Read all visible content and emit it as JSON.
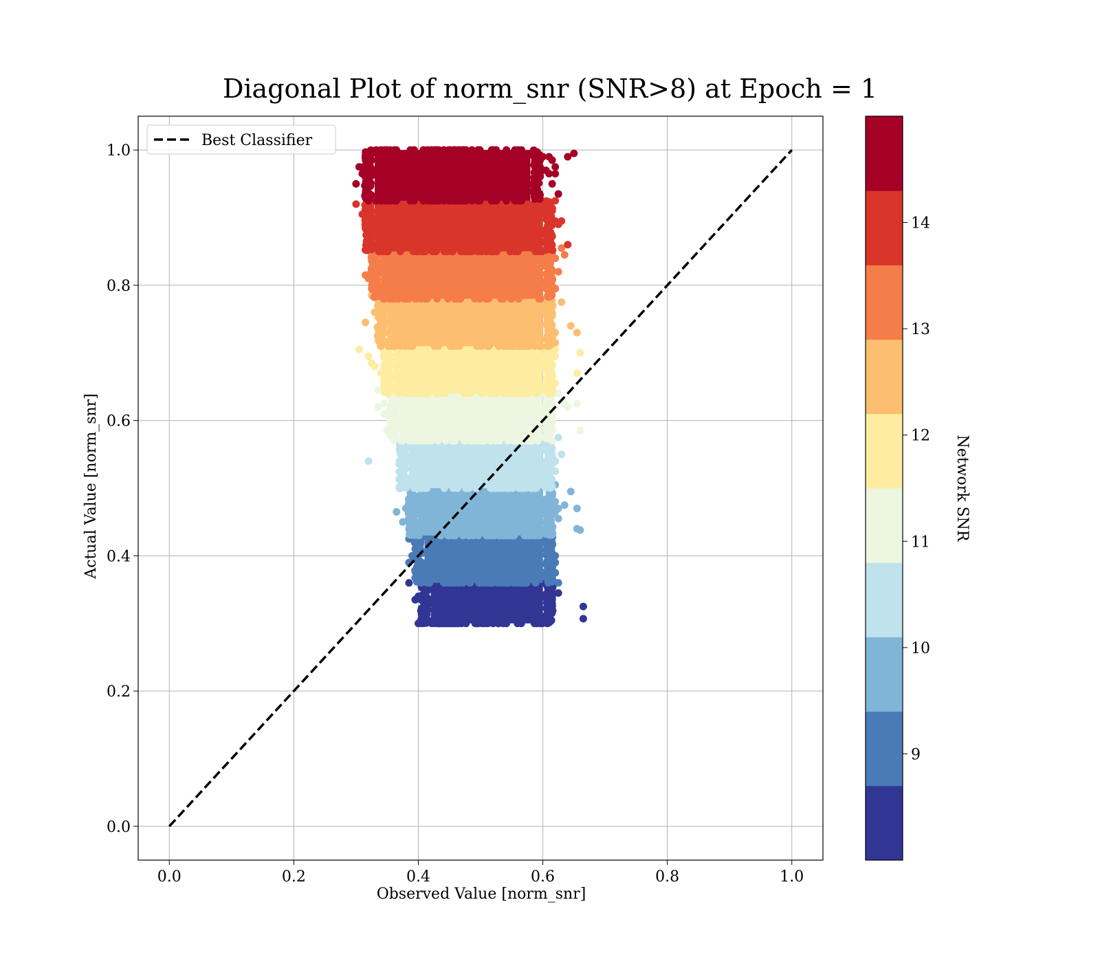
{
  "chart_data": {
    "type": "scatter",
    "title": "Diagonal Plot of norm_snr (SNR>8) at Epoch = 1",
    "xlabel": "Observed Value [norm_snr]",
    "ylabel": "Actual Value [norm_snr]",
    "xlim": [
      -0.05,
      1.05
    ],
    "ylim": [
      -0.05,
      1.05
    ],
    "x_ticks": [
      "0.0",
      "0.2",
      "0.4",
      "0.6",
      "0.8",
      "1.0"
    ],
    "y_ticks": [
      "0.0",
      "0.2",
      "0.4",
      "0.6",
      "0.8",
      "1.0"
    ],
    "grid": true,
    "legend": {
      "placement": "top-left",
      "entries": [
        "Best Classifier"
      ]
    },
    "reference_line": {
      "label": "Best Classifier",
      "x": [
        0.0,
        1.0
      ],
      "y": [
        0.0,
        1.0
      ],
      "style": "dashed",
      "color": "#000000"
    },
    "colorbar": {
      "label": "Network SNR",
      "range": [
        8.0,
        15.0
      ],
      "ticks": [
        "9",
        "10",
        "11",
        "12",
        "13",
        "14"
      ],
      "bins": [
        {
          "from": 8.0,
          "to": 8.7,
          "color": "#313695"
        },
        {
          "from": 8.7,
          "to": 9.4,
          "color": "#4a7bb7"
        },
        {
          "from": 9.4,
          "to": 10.1,
          "color": "#81b5d7"
        },
        {
          "from": 10.1,
          "to": 10.8,
          "color": "#bfe2ed"
        },
        {
          "from": 10.8,
          "to": 11.5,
          "color": "#edf6e1"
        },
        {
          "from": 11.5,
          "to": 12.2,
          "color": "#feeda1"
        },
        {
          "from": 12.2,
          "to": 12.9,
          "color": "#fdbe6f"
        },
        {
          "from": 12.9,
          "to": 13.6,
          "color": "#f57d4a"
        },
        {
          "from": 13.6,
          "to": 14.3,
          "color": "#d9352a"
        },
        {
          "from": 14.3,
          "to": 15.0,
          "color": "#a50026"
        }
      ]
    },
    "series": [
      {
        "snr_bin": 1,
        "color": "#313695",
        "y_range": [
          0.3,
          0.36
        ],
        "x_core": [
          0.42,
          0.6
        ],
        "outliers": [
          [
            0.4,
            0.3
          ],
          [
            0.415,
            0.305
          ],
          [
            0.4,
            0.34
          ],
          [
            0.395,
            0.335
          ],
          [
            0.385,
            0.36
          ],
          [
            0.41,
            0.355
          ],
          [
            0.665,
            0.325
          ],
          [
            0.665,
            0.307
          ],
          [
            0.62,
            0.36
          ],
          [
            0.625,
            0.345
          ],
          [
            0.615,
            0.345
          ],
          [
            0.43,
            0.31
          ],
          [
            0.415,
            0.32
          ]
        ]
      },
      {
        "snr_bin": 2,
        "color": "#4a7bb7",
        "y_range": [
          0.36,
          0.43
        ],
        "x_core": [
          0.41,
          0.6
        ],
        "outliers": [
          [
            0.385,
            0.425
          ],
          [
            0.39,
            0.4
          ],
          [
            0.385,
            0.39
          ],
          [
            0.395,
            0.41
          ],
          [
            0.62,
            0.39
          ],
          [
            0.625,
            0.36
          ],
          [
            0.62,
            0.4
          ],
          [
            0.62,
            0.375
          ],
          [
            0.61,
            0.435
          ],
          [
            0.42,
            0.37
          ],
          [
            0.41,
            0.38
          ]
        ]
      },
      {
        "snr_bin": 3,
        "color": "#81b5d7",
        "y_range": [
          0.43,
          0.5
        ],
        "x_core": [
          0.4,
          0.6
        ],
        "outliers": [
          [
            0.365,
            0.465
          ],
          [
            0.385,
            0.44
          ],
          [
            0.375,
            0.45
          ],
          [
            0.38,
            0.47
          ],
          [
            0.39,
            0.455
          ],
          [
            0.38,
            0.505
          ],
          [
            0.37,
            0.5
          ],
          [
            0.62,
            0.48
          ],
          [
            0.62,
            0.465
          ],
          [
            0.625,
            0.455
          ],
          [
            0.635,
            0.475
          ],
          [
            0.645,
            0.495
          ],
          [
            0.655,
            0.47
          ],
          [
            0.655,
            0.44
          ],
          [
            0.66,
            0.438
          ],
          [
            0.62,
            0.505
          ],
          [
            0.625,
            0.47
          ]
        ]
      },
      {
        "snr_bin": 4,
        "color": "#bfe2ed",
        "y_range": [
          0.5,
          0.57
        ],
        "x_core": [
          0.385,
          0.6
        ],
        "outliers": [
          [
            0.32,
            0.54
          ],
          [
            0.355,
            0.58
          ],
          [
            0.37,
            0.565
          ],
          [
            0.375,
            0.53
          ],
          [
            0.385,
            0.51
          ],
          [
            0.38,
            0.55
          ],
          [
            0.625,
            0.575
          ],
          [
            0.63,
            0.55
          ],
          [
            0.62,
            0.54
          ],
          [
            0.61,
            0.515
          ],
          [
            0.62,
            0.525
          ]
        ]
      },
      {
        "snr_bin": 5,
        "color": "#edf6e1",
        "y_range": [
          0.57,
          0.64
        ],
        "x_core": [
          0.37,
          0.6
        ],
        "outliers": [
          [
            0.335,
            0.645
          ],
          [
            0.335,
            0.62
          ],
          [
            0.345,
            0.625
          ],
          [
            0.345,
            0.61
          ],
          [
            0.35,
            0.585
          ],
          [
            0.36,
            0.6
          ],
          [
            0.64,
            0.62
          ],
          [
            0.635,
            0.625
          ],
          [
            0.655,
            0.625
          ],
          [
            0.66,
            0.585
          ],
          [
            0.625,
            0.64
          ],
          [
            0.615,
            0.61
          ]
        ]
      },
      {
        "snr_bin": 6,
        "color": "#feeda1",
        "y_range": [
          0.64,
          0.71
        ],
        "x_core": [
          0.36,
          0.6
        ],
        "outliers": [
          [
            0.305,
            0.705
          ],
          [
            0.32,
            0.695
          ],
          [
            0.325,
            0.685
          ],
          [
            0.33,
            0.68
          ],
          [
            0.34,
            0.67
          ],
          [
            0.345,
            0.66
          ],
          [
            0.35,
            0.645
          ],
          [
            0.62,
            0.695
          ],
          [
            0.62,
            0.705
          ],
          [
            0.615,
            0.67
          ],
          [
            0.62,
            0.655
          ],
          [
            0.61,
            0.64
          ],
          [
            0.66,
            0.7
          ],
          [
            0.655,
            0.67
          ]
        ]
      },
      {
        "snr_bin": 7,
        "color": "#fdbe6f",
        "y_range": [
          0.71,
          0.78
        ],
        "x_core": [
          0.35,
          0.6
        ],
        "outliers": [
          [
            0.315,
            0.745
          ],
          [
            0.325,
            0.785
          ],
          [
            0.33,
            0.76
          ],
          [
            0.34,
            0.75
          ],
          [
            0.335,
            0.725
          ],
          [
            0.345,
            0.715
          ],
          [
            0.615,
            0.755
          ],
          [
            0.62,
            0.73
          ],
          [
            0.63,
            0.775
          ],
          [
            0.645,
            0.74
          ],
          [
            0.655,
            0.73
          ],
          [
            0.62,
            0.715
          ],
          [
            0.61,
            0.76
          ]
        ]
      },
      {
        "snr_bin": 8,
        "color": "#f57d4a",
        "y_range": [
          0.78,
          0.85
        ],
        "x_core": [
          0.34,
          0.6
        ],
        "outliers": [
          [
            0.315,
            0.815
          ],
          [
            0.32,
            0.81
          ],
          [
            0.33,
            0.815
          ],
          [
            0.335,
            0.835
          ],
          [
            0.33,
            0.855
          ],
          [
            0.34,
            0.845
          ],
          [
            0.615,
            0.81
          ],
          [
            0.625,
            0.82
          ],
          [
            0.62,
            0.84
          ],
          [
            0.63,
            0.855
          ],
          [
            0.635,
            0.845
          ],
          [
            0.62,
            0.795
          ],
          [
            0.61,
            0.8
          ]
        ]
      },
      {
        "snr_bin": 9,
        "color": "#d9352a",
        "y_range": [
          0.85,
          0.925
        ],
        "x_core": [
          0.33,
          0.6
        ],
        "outliers": [
          [
            0.3,
            0.92
          ],
          [
            0.31,
            0.905
          ],
          [
            0.315,
            0.885
          ],
          [
            0.325,
            0.875
          ],
          [
            0.32,
            0.905
          ],
          [
            0.33,
            0.895
          ],
          [
            0.61,
            0.885
          ],
          [
            0.62,
            0.895
          ],
          [
            0.625,
            0.89
          ],
          [
            0.63,
            0.895
          ],
          [
            0.64,
            0.86
          ],
          [
            0.615,
            0.91
          ],
          [
            0.62,
            0.925
          ],
          [
            0.61,
            0.865
          ]
        ]
      },
      {
        "snr_bin": 10,
        "color": "#a50026",
        "y_range": [
          0.925,
          1.0
        ],
        "x_core": [
          0.33,
          0.58
        ],
        "outliers": [
          [
            0.3,
            0.95
          ],
          [
            0.305,
            0.975
          ],
          [
            0.31,
            0.965
          ],
          [
            0.315,
            0.935
          ],
          [
            0.32,
            0.925
          ],
          [
            0.315,
            0.96
          ],
          [
            0.325,
            0.985
          ],
          [
            0.6,
            0.99
          ],
          [
            0.61,
            0.99
          ],
          [
            0.615,
            0.985
          ],
          [
            0.62,
            0.975
          ],
          [
            0.605,
            0.97
          ],
          [
            0.61,
            0.965
          ],
          [
            0.62,
            0.965
          ],
          [
            0.625,
            0.935
          ],
          [
            0.615,
            0.95
          ],
          [
            0.59,
            0.995
          ],
          [
            0.65,
            0.995
          ],
          [
            0.64,
            0.99
          ]
        ]
      }
    ]
  }
}
